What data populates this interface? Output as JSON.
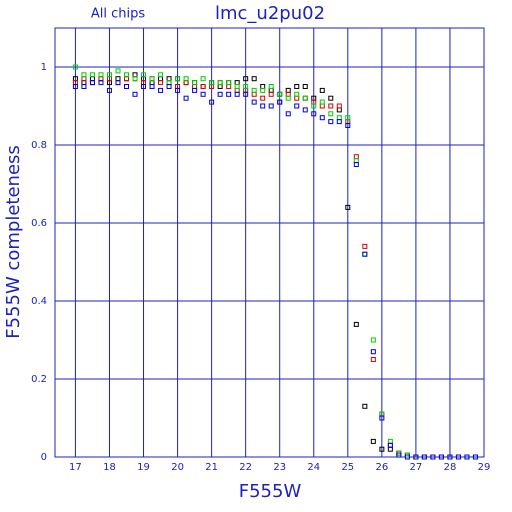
{
  "chart_data": {
    "type": "scatter",
    "title": "lmc_u2pu02",
    "subtitle": "All chips",
    "x_label": "F555W",
    "y_label": "F555W completeness",
    "xlim": [
      16.4,
      29
    ],
    "ylim": [
      0,
      1.1
    ],
    "xticks": [
      17,
      18,
      19,
      20,
      21,
      22,
      23,
      24,
      25,
      26,
      27,
      28,
      29
    ],
    "yticks": [
      0,
      0.2,
      0.4,
      0.6,
      0.8,
      1
    ],
    "grid": true,
    "x": [
      17,
      17.25,
      17.5,
      17.75,
      18,
      18.25,
      18.5,
      18.75,
      19,
      19.25,
      19.5,
      19.75,
      20,
      20.25,
      20.5,
      20.75,
      21,
      21.25,
      21.5,
      21.75,
      22,
      22.25,
      22.5,
      22.75,
      23,
      23.25,
      23.5,
      23.75,
      24,
      24.25,
      24.5,
      24.75,
      25,
      25.25,
      25.5,
      25.75,
      26,
      26.25,
      26.5,
      26.75,
      27,
      27.25,
      27.5,
      27.75,
      28,
      28.25,
      28.5,
      28.75
    ],
    "series": [
      {
        "color": "#000000",
        "values": [
          0.97,
          0.96,
          0.97,
          0.97,
          0.96,
          0.97,
          0.97,
          0.98,
          0.97,
          0.96,
          0.97,
          0.97,
          0.97,
          0.96,
          0.96,
          0.95,
          0.96,
          0.95,
          0.96,
          0.96,
          0.97,
          0.97,
          0.95,
          0.94,
          0.93,
          0.94,
          0.95,
          0.95,
          0.92,
          0.94,
          0.92,
          0.89,
          0.64,
          0.34,
          0.13,
          0.04,
          0.02,
          0.02,
          0.01,
          0.005,
          0,
          0,
          0,
          0,
          0,
          0,
          0,
          0
        ]
      },
      {
        "color": "#e00000",
        "values": [
          0.96,
          0.97,
          0.96,
          0.97,
          0.97,
          0.96,
          0.97,
          0.97,
          0.96,
          0.97,
          0.96,
          0.96,
          0.95,
          0.96,
          0.95,
          0.95,
          0.95,
          0.96,
          0.95,
          0.94,
          0.94,
          0.93,
          0.92,
          0.93,
          0.91,
          0.93,
          0.92,
          0.92,
          0.91,
          0.9,
          0.9,
          0.9,
          0.86,
          0.77,
          0.54,
          0.25,
          0.11,
          0.03,
          0.01,
          0.005,
          0,
          0,
          0,
          0,
          0,
          0,
          0,
          0
        ]
      },
      {
        "color": "#00d000",
        "values": [
          1.0,
          0.98,
          0.98,
          0.98,
          0.98,
          0.99,
          0.98,
          0.97,
          0.98,
          0.97,
          0.98,
          0.96,
          0.97,
          0.97,
          0.96,
          0.97,
          0.96,
          0.96,
          0.96,
          0.95,
          0.95,
          0.94,
          0.94,
          0.95,
          0.93,
          0.92,
          0.93,
          0.92,
          0.9,
          0.91,
          0.88,
          0.87,
          0.87,
          0.76,
          0.52,
          0.3,
          0.11,
          0.04,
          0.01,
          0.005,
          0,
          0,
          0,
          0,
          0,
          0,
          0,
          0
        ]
      },
      {
        "color": "#0000e0",
        "values": [
          0.95,
          0.95,
          0.96,
          0.96,
          0.94,
          0.96,
          0.95,
          0.93,
          0.95,
          0.95,
          0.94,
          0.95,
          0.94,
          0.92,
          0.94,
          0.93,
          0.91,
          0.93,
          0.93,
          0.93,
          0.93,
          0.91,
          0.9,
          0.9,
          0.91,
          0.88,
          0.9,
          0.89,
          0.88,
          0.87,
          0.86,
          0.86,
          0.85,
          0.75,
          0.52,
          0.27,
          0.1,
          0.03,
          0.005,
          0,
          0,
          0,
          0,
          0,
          0,
          0,
          0,
          0
        ]
      }
    ]
  }
}
